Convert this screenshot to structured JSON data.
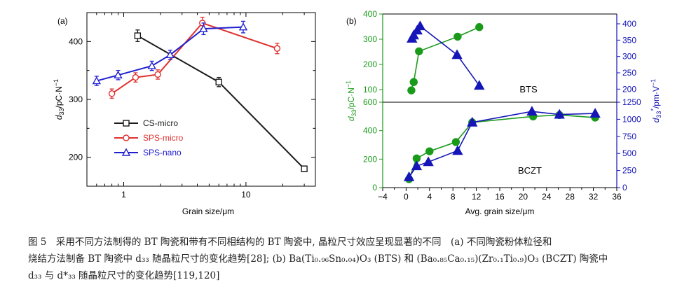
{
  "caption": {
    "line1": "图 5　采用不同方法制得的 BT 陶瓷和带有不同相结构的 BT 陶瓷中, 晶粒尺寸效应呈现显著的不同　(a) 不同陶瓷粉体粒径和",
    "line2": "烧结方法制备 BT 陶瓷中 d₃₃ 随晶粒尺寸的变化趋势[28]; (b) Ba(Ti₀.₉₆Sn₀.₀₄)O₃ (BTS) 和 (Ba₀.₈₅Ca₀.₁₅)(Zr₀.₁Ti₀.₉)O₃ (BCZT) 陶瓷中",
    "line3": "d₃₃ 与 d*₃₃ 随晶粒尺寸的变化趋势[119,120]"
  },
  "chart_data": [
    {
      "type": "line",
      "panel_label": "(a)",
      "xlabel": "Grain size/μm",
      "ylabel": "d33/pC·N−1",
      "x_scale": "log",
      "xlim": [
        0.5,
        37
      ],
      "ylim": [
        150,
        450
      ],
      "x_ticks": [
        1,
        10
      ],
      "x_tick_labels": [
        "1",
        "10"
      ],
      "y_ticks": [
        200,
        300,
        400
      ],
      "y_tick_labels": [
        "200",
        "300",
        "400"
      ],
      "legend_position": "center-left",
      "series": [
        {
          "name": "CS-micro",
          "color": "#1a1a1a",
          "marker": "square",
          "x": [
            1.3,
            6,
            30
          ],
          "y": [
            410,
            330,
            180
          ],
          "err": [
            10,
            8,
            5
          ]
        },
        {
          "name": "SPS-micro",
          "color": "#e03030",
          "marker": "circle",
          "x": [
            0.8,
            1.25,
            1.9,
            4.4,
            18
          ],
          "y": [
            310,
            338,
            343,
            432,
            388
          ],
          "err": [
            8,
            8,
            8,
            10,
            9
          ]
        },
        {
          "name": "SPS-nano",
          "color": "#2020d0",
          "marker": "triangle",
          "x": [
            0.6,
            0.9,
            1.7,
            2.4,
            4.5,
            9.5
          ],
          "y": [
            332,
            342,
            358,
            377,
            422,
            425
          ],
          "err": [
            8,
            8,
            8,
            8,
            10,
            10
          ]
        }
      ]
    },
    {
      "type": "line",
      "panel_label": "(b)",
      "subpanel": "BTS",
      "xlabel": "Avg. grain size/μm",
      "ylabel_left": "d33/pC·N−1",
      "ylabel_right": "d*33/pm·V−1",
      "xlim": [
        -4,
        36
      ],
      "x_ticks": [
        -4,
        0,
        4,
        8,
        12,
        16,
        20,
        24,
        28,
        32,
        36
      ],
      "ylim_left": [
        50,
        400
      ],
      "y_ticks_left": [
        100,
        200,
        300,
        400
      ],
      "ylim_right": [
        160,
        430
      ],
      "y_ticks_right": [
        200,
        250,
        300,
        350,
        400
      ],
      "series": [
        {
          "name": "d33",
          "axis": "left",
          "color": "#1a9a1a",
          "marker": "circle",
          "x": [
            0.9,
            1.3,
            2.2,
            8.8,
            12.5
          ],
          "y": [
            97,
            130,
            252,
            310,
            348
          ]
        },
        {
          "name": "d*33",
          "axis": "right",
          "color": "#1515b8",
          "marker": "triangle",
          "x": [
            1.0,
            1.3,
            1.9,
            2.4,
            8.7,
            12.5
          ],
          "y": [
            355,
            365,
            380,
            393,
            305,
            211
          ]
        }
      ]
    },
    {
      "type": "line",
      "panel_label": "",
      "subpanel": "BCZT",
      "xlabel": "Avg. grain size/μm",
      "xlim": [
        -4,
        36
      ],
      "x_ticks": [
        -4,
        0,
        4,
        8,
        12,
        16,
        20,
        24,
        28,
        32,
        36
      ],
      "ylim_left": [
        0,
        600
      ],
      "y_ticks_left": [
        0,
        200,
        400,
        600
      ],
      "ylim_right": [
        0,
        1250
      ],
      "y_ticks_right": [
        0,
        250,
        500,
        750,
        1000,
        1250
      ],
      "series": [
        {
          "name": "d33",
          "axis": "left",
          "color": "#1a9a1a",
          "marker": "circle",
          "x": [
            0.5,
            1.8,
            4.0,
            8.5,
            11.3,
            21.7,
            26.2,
            32.3
          ],
          "y": [
            60,
            205,
            255,
            320,
            458,
            500,
            510,
            492
          ]
        },
        {
          "name": "d*33",
          "axis": "right",
          "color": "#1515b8",
          "marker": "triangle",
          "x": [
            0.5,
            1.8,
            3.8,
            8.8,
            11.3,
            21.5,
            26.2,
            32.3
          ],
          "y": [
            155,
            315,
            375,
            540,
            955,
            1115,
            1070,
            1085
          ]
        }
      ]
    }
  ]
}
